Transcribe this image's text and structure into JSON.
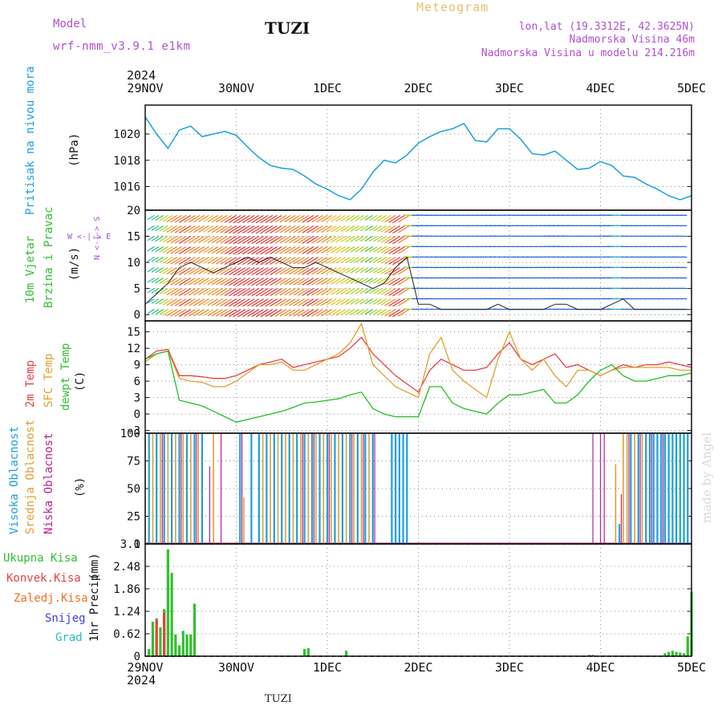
{
  "header": {
    "model_label": "Model",
    "model_name": "wrf-nmm_v3.9.1 e1km",
    "location": "TUZI",
    "meteogram_title": "Meteogram",
    "lonlat": "lon,lat (19.3312E, 42.3625N)",
    "altitude": "Nadmorska Visina 46m",
    "model_altitude": "Nadmorska Visina u modelu 214.216m",
    "watermark": "made by Angel",
    "footer_location": "TUZI"
  },
  "time_axis": {
    "year": "2024",
    "ticks": [
      "29NOV",
      "30NOV",
      "1DEC",
      "2DEC",
      "3DEC",
      "4DEC",
      "5DEC"
    ],
    "range_hours": [
      0,
      144
    ]
  },
  "colors": {
    "pressure": "#1a9fe0",
    "speed": "#222222",
    "t2m": "#e84040",
    "sfc": "#e0a030",
    "dewpt": "#20c020",
    "high_cloud": "#1a9fe0",
    "mid_cloud": "#e0a030",
    "low_cloud": "#c0208a",
    "total_precip": "#30c030",
    "conv_precip": "#e84040",
    "frz_precip": "#f07020",
    "snow": "#4040d0",
    "hail": "#20c0c0",
    "purple_text": "#b050d0",
    "gold_text": "#e8c070"
  },
  "chart_data": [
    {
      "type": "line",
      "name": "pressure",
      "ylabel_1": "Pritisak na nivou mora",
      "ylabel_2": "(hPa)",
      "yticks": [
        1016,
        1018,
        1020
      ],
      "ylim": [
        1014.2,
        1022.2
      ],
      "grid": true,
      "x": [
        0,
        3,
        6,
        9,
        12,
        15,
        18,
        21,
        24,
        27,
        30,
        33,
        36,
        39,
        42,
        45,
        48,
        51,
        54,
        57,
        60,
        63,
        66,
        69,
        72,
        75,
        78,
        81,
        84,
        87,
        90,
        93,
        96,
        99,
        102,
        105,
        108,
        111,
        114,
        117,
        120,
        123,
        126,
        129,
        132,
        135,
        138,
        141,
        144
      ],
      "values": [
        1021.3,
        1020.0,
        1018.9,
        1020.3,
        1020.6,
        1019.8,
        1020.0,
        1020.2,
        1019.9,
        1019.0,
        1018.2,
        1017.6,
        1017.4,
        1017.3,
        1016.8,
        1016.2,
        1015.8,
        1015.3,
        1015.0,
        1015.8,
        1017.1,
        1018.0,
        1017.8,
        1018.4,
        1019.3,
        1019.8,
        1020.2,
        1020.4,
        1020.8,
        1019.5,
        1019.4,
        1020.4,
        1020.4,
        1019.6,
        1018.5,
        1018.4,
        1018.7,
        1018.0,
        1017.3,
        1017.4,
        1017.9,
        1017.6,
        1016.8,
        1016.7,
        1016.2,
        1015.8,
        1015.3,
        1015.0,
        1015.3
      ]
    },
    {
      "type": "line",
      "name": "wind",
      "ylabel_1": "10m Vjetar",
      "ylabel_2": "Brzina i Pravac",
      "ylabel_3": "(m/s)",
      "compass": "W <-|-> E",
      "compass_ns": "N <-|-> S",
      "yticks": [
        0,
        5,
        10,
        15,
        20
      ],
      "ylim": [
        -1.2,
        20
      ],
      "grid": true,
      "x": [
        0,
        3,
        6,
        9,
        12,
        15,
        18,
        21,
        24,
        27,
        30,
        33,
        36,
        39,
        42,
        45,
        48,
        51,
        54,
        57,
        60,
        63,
        66,
        69,
        72,
        75,
        78,
        81,
        84,
        87,
        90,
        93,
        96,
        99,
        102,
        105,
        108,
        111,
        114,
        117,
        120,
        123,
        126,
        129,
        132,
        135,
        138,
        141,
        144
      ],
      "values": [
        2,
        4,
        6,
        9,
        10,
        9,
        8,
        9,
        10,
        11,
        10,
        11,
        10,
        9,
        9,
        10,
        9,
        8,
        7,
        6,
        5,
        6,
        9,
        11,
        2,
        2,
        1,
        1,
        1,
        1,
        1,
        2,
        1,
        1,
        1,
        1,
        2,
        2,
        1,
        1,
        1,
        2,
        3,
        1,
        1,
        1,
        1,
        1,
        1
      ],
      "barb_rows": [
        1,
        3,
        5,
        7,
        9,
        11,
        13,
        15,
        17,
        19
      ]
    },
    {
      "type": "line",
      "name": "temperature",
      "ylabel_1": "2m Temp",
      "ylabel_2": "SFC Temp",
      "ylabel_3": "dewpt Temp",
      "ylabel_4": "(C)",
      "yticks": [
        -3,
        0,
        3,
        6,
        9,
        12,
        15
      ],
      "ylim": [
        -3.5,
        17
      ],
      "grid": true,
      "x": [
        0,
        3,
        6,
        9,
        12,
        15,
        18,
        21,
        24,
        27,
        30,
        33,
        36,
        39,
        42,
        45,
        48,
        51,
        54,
        57,
        60,
        63,
        66,
        69,
        72,
        75,
        78,
        81,
        84,
        87,
        90,
        93,
        96,
        99,
        102,
        105,
        108,
        111,
        114,
        117,
        120,
        123,
        126,
        129,
        132,
        135,
        138,
        141,
        144
      ],
      "series": [
        {
          "name": "2m Temp",
          "values": [
            10,
            11.5,
            11.8,
            7,
            7,
            6.8,
            6.5,
            6.5,
            7,
            8,
            9,
            9.5,
            10,
            8.5,
            9,
            9.5,
            10,
            10.5,
            12,
            14,
            11,
            9,
            7,
            5.5,
            4,
            8,
            10,
            9,
            8,
            8,
            8.5,
            11,
            13,
            10,
            9,
            10,
            11,
            8.5,
            9,
            8,
            7,
            8,
            9,
            8.5,
            9,
            9,
            9.5,
            9,
            8.5
          ]
        },
        {
          "name": "SFC Temp",
          "values": [
            9.5,
            11,
            11.5,
            6.5,
            6,
            5.8,
            5,
            5,
            6,
            7.5,
            9,
            9,
            9.5,
            8,
            8,
            9,
            10,
            11,
            13,
            16.5,
            9,
            7,
            5,
            4,
            3,
            11,
            14,
            8,
            6,
            4.5,
            3,
            10,
            15,
            10,
            8,
            10,
            7,
            5,
            8,
            8,
            7,
            8,
            8.5,
            8.5,
            8.5,
            8.5,
            8.5,
            8,
            8
          ]
        },
        {
          "name": "dewpt Temp",
          "values": [
            10,
            11,
            11.5,
            2.5,
            2,
            1.5,
            0.5,
            -0.5,
            -1.5,
            -1,
            -0.5,
            0,
            0.5,
            1.2,
            2,
            2.2,
            2.5,
            2.8,
            3.5,
            4,
            1,
            0,
            -0.5,
            -0.5,
            -0.5,
            5,
            5,
            2,
            1,
            0.5,
            0,
            2,
            3.5,
            3.5,
            4,
            4.5,
            2,
            2,
            3.5,
            6,
            8,
            9,
            7,
            6,
            6,
            6.5,
            7,
            7,
            7.5
          ]
        }
      ]
    },
    {
      "type": "bar",
      "name": "clouds",
      "ylabel_1": "Visoka Oblacnost",
      "ylabel_2": "Srednja Oblacnost",
      "ylabel_3": "Niska Oblacnost",
      "ylabel_4": "(%)",
      "yticks": [
        0,
        25,
        50,
        75,
        100
      ],
      "ylim": [
        0,
        100
      ],
      "grid": true,
      "series": [
        {
          "name": "Visoka Oblacnost",
          "x": [
            1,
            3,
            5,
            7,
            9,
            11,
            13,
            15,
            25,
            28,
            30,
            32,
            34,
            36,
            38,
            40,
            42,
            44,
            46,
            48,
            50,
            52,
            54,
            56,
            58,
            60,
            65,
            66,
            67,
            68,
            69,
            125,
            128,
            130,
            132,
            133,
            134,
            135,
            136,
            137,
            138,
            139,
            140,
            141,
            142,
            143
          ],
          "values": [
            100,
            100,
            100,
            100,
            100,
            100,
            100,
            100,
            100,
            100,
            100,
            100,
            100,
            100,
            100,
            100,
            100,
            100,
            100,
            100,
            100,
            100,
            100,
            100,
            100,
            100,
            100,
            100,
            100,
            100,
            100,
            18,
            100,
            100,
            100,
            100,
            100,
            100,
            100,
            100,
            100,
            100,
            100,
            100,
            100,
            100
          ]
        },
        {
          "name": "Srednja Oblacnost",
          "x": [
            2,
            4,
            6,
            8,
            10,
            12,
            14,
            18,
            26,
            31,
            33,
            35,
            37,
            39,
            41,
            43,
            45,
            47,
            49,
            51,
            53,
            55,
            57,
            59,
            124,
            126,
            127,
            129,
            131
          ],
          "values": [
            100,
            100,
            100,
            100,
            100,
            100,
            100,
            100,
            42,
            100,
            100,
            100,
            100,
            100,
            100,
            100,
            100,
            100,
            100,
            100,
            100,
            100,
            100,
            100,
            72,
            100,
            100,
            100,
            100
          ]
        },
        {
          "name": "Niska Oblacnost",
          "x": [
            0,
            4.5,
            9.5,
            13.5,
            17,
            20,
            25.5,
            41.5,
            44.5,
            48.5,
            54.5,
            57.5,
            60.5,
            118,
            120,
            121,
            125.5,
            127.5,
            130.5,
            133.5,
            136.5
          ],
          "values": [
            100,
            100,
            100,
            100,
            70,
            100,
            100,
            100,
            100,
            100,
            100,
            100,
            100,
            100,
            100,
            100,
            45,
            100,
            100,
            100,
            100
          ]
        }
      ]
    },
    {
      "type": "bar",
      "name": "precip",
      "ylabel_1": "1hr Precip",
      "ylabel_2": "(mm)",
      "legend": [
        "Ukupna Kisa",
        "Konvek.Kisa",
        "Zaledj.Kisa",
        "Snijeg",
        "Grad"
      ],
      "yticks": [
        0,
        0.62,
        1.24,
        1.86,
        2.48,
        3.1
      ],
      "ytick_labels": [
        "0",
        "0.62",
        "1.24",
        "1.86",
        "2.48",
        "3.1"
      ],
      "ylim": [
        0,
        3.1
      ],
      "grid": true,
      "series": [
        {
          "name": "Ukupna Kisa",
          "x": [
            1,
            2,
            3,
            4,
            5,
            6,
            7,
            8,
            9,
            10,
            11,
            12,
            13,
            42,
            43,
            53,
            117,
            118,
            137,
            138,
            139,
            140,
            141,
            142,
            143,
            144
          ],
          "values": [
            0.2,
            0.95,
            1.05,
            0.8,
            1.3,
            2.95,
            2.3,
            0.6,
            0.3,
            0.7,
            0.6,
            0.6,
            1.45,
            0.2,
            0.22,
            0.15,
            0.04,
            0.04,
            0.08,
            0.12,
            0.15,
            0.12,
            0.1,
            0.08,
            0.55,
            1.78
          ]
        },
        {
          "name": "Konvek.Kisa",
          "x": [
            3,
            5
          ],
          "values": [
            1.0,
            1.2
          ]
        }
      ]
    }
  ]
}
